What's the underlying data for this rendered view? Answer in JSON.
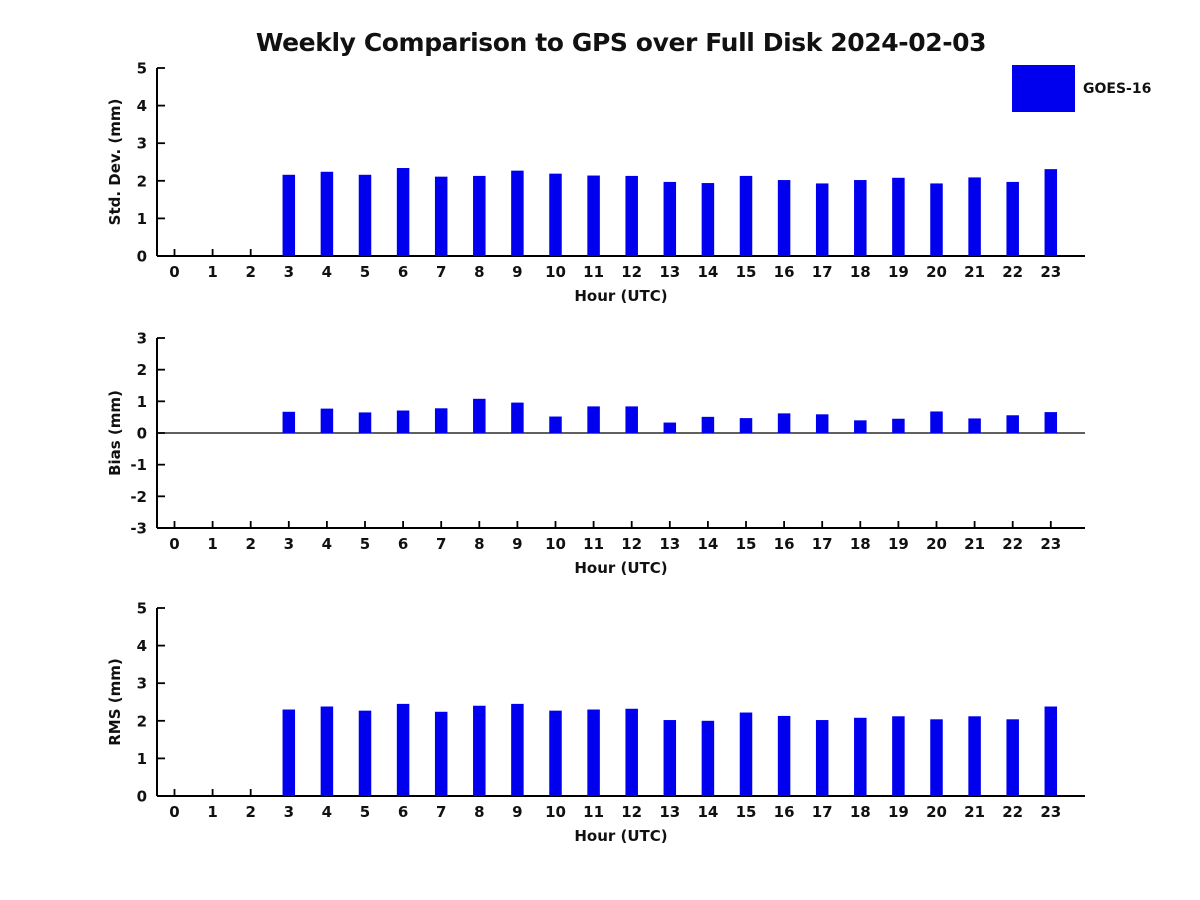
{
  "title": "Weekly Comparison to GPS over Full Disk 2024-02-03",
  "legend": {
    "label": "GOES-16",
    "color": "#0000ee"
  },
  "colors": {
    "bar": "#0000ee",
    "axis": "#000000",
    "text": "#111111",
    "background": "#ffffff"
  },
  "chart_data": [
    {
      "type": "bar",
      "name": "std-dev",
      "title": "",
      "xlabel": "Hour (UTC)",
      "ylabel": "Std. Dev. (mm)",
      "ylim": [
        0,
        5
      ],
      "yticks": [
        0,
        1,
        2,
        3,
        4,
        5
      ],
      "grid": false,
      "legend_position": "outside-top-right",
      "categories": [
        0,
        1,
        2,
        3,
        4,
        5,
        6,
        7,
        8,
        9,
        10,
        11,
        12,
        13,
        14,
        15,
        16,
        17,
        18,
        19,
        20,
        21,
        22,
        23
      ],
      "series": [
        {
          "name": "GOES-16",
          "values": [
            null,
            null,
            null,
            2.16,
            2.24,
            2.16,
            2.34,
            2.11,
            2.13,
            2.27,
            2.19,
            2.14,
            2.13,
            1.97,
            1.94,
            2.13,
            2.02,
            1.93,
            2.02,
            2.08,
            1.93,
            2.09,
            1.97,
            2.31
          ]
        }
      ]
    },
    {
      "type": "bar",
      "name": "bias",
      "title": "",
      "xlabel": "Hour (UTC)",
      "ylabel": "Bias (mm)",
      "ylim": [
        -3,
        3
      ],
      "yticks": [
        -3,
        -2,
        -1,
        0,
        1,
        2,
        3
      ],
      "zero_line": true,
      "grid": false,
      "categories": [
        0,
        1,
        2,
        3,
        4,
        5,
        6,
        7,
        8,
        9,
        10,
        11,
        12,
        13,
        14,
        15,
        16,
        17,
        18,
        19,
        20,
        21,
        22,
        23
      ],
      "series": [
        {
          "name": "GOES-16",
          "values": [
            null,
            null,
            null,
            0.67,
            0.77,
            0.65,
            0.71,
            0.78,
            1.08,
            0.96,
            0.52,
            0.84,
            0.84,
            0.33,
            0.51,
            0.47,
            0.62,
            0.59,
            0.4,
            0.45,
            0.68,
            0.46,
            0.56,
            0.66
          ]
        }
      ]
    },
    {
      "type": "bar",
      "name": "rms",
      "title": "",
      "xlabel": "Hour (UTC)",
      "ylabel": "RMS (mm)",
      "ylim": [
        0,
        5
      ],
      "yticks": [
        0,
        1,
        2,
        3,
        4,
        5
      ],
      "grid": false,
      "categories": [
        0,
        1,
        2,
        3,
        4,
        5,
        6,
        7,
        8,
        9,
        10,
        11,
        12,
        13,
        14,
        15,
        16,
        17,
        18,
        19,
        20,
        21,
        22,
        23
      ],
      "series": [
        {
          "name": "GOES-16",
          "values": [
            null,
            null,
            null,
            2.3,
            2.38,
            2.27,
            2.45,
            2.24,
            2.4,
            2.45,
            2.27,
            2.3,
            2.32,
            2.02,
            2.0,
            2.22,
            2.13,
            2.02,
            2.08,
            2.12,
            2.04,
            2.12,
            2.04,
            2.38
          ]
        }
      ]
    }
  ]
}
